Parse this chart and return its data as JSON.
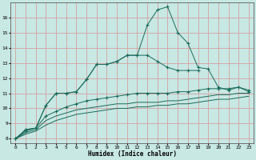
{
  "xlabel": "Humidex (Indice chaleur)",
  "ylabel": "",
  "background_color": "#c8e8e4",
  "grid_color": "#d4a0a0",
  "line_color": "#1a6b5a",
  "xlim": [
    -0.5,
    23.5
  ],
  "ylim": [
    7.7,
    17.0
  ],
  "yticks": [
    8,
    9,
    10,
    11,
    12,
    13,
    14,
    15,
    16
  ],
  "xticks": [
    0,
    1,
    2,
    3,
    4,
    5,
    6,
    7,
    8,
    9,
    10,
    11,
    12,
    13,
    14,
    15,
    16,
    17,
    18,
    19,
    20,
    21,
    22,
    23
  ],
  "series": [
    {
      "x": [
        0,
        1,
        2,
        3,
        4,
        5,
        6,
        7,
        8,
        9,
        10,
        11,
        12,
        13,
        14,
        15,
        16,
        17,
        18,
        19,
        20,
        21,
        22,
        23
      ],
      "y": [
        8.0,
        8.6,
        8.7,
        10.2,
        11.0,
        11.0,
        11.1,
        11.9,
        12.9,
        12.9,
        13.1,
        13.5,
        13.5,
        15.5,
        16.5,
        16.7,
        15.0,
        14.3,
        12.7,
        12.6,
        11.4,
        11.2,
        11.4,
        11.1
      ],
      "marker": "+"
    },
    {
      "x": [
        0,
        1,
        2,
        3,
        4,
        5,
        6,
        7,
        8,
        9,
        10,
        11,
        12,
        13,
        14,
        15,
        16,
        17,
        18
      ],
      "y": [
        8.0,
        8.6,
        8.7,
        10.2,
        11.0,
        11.0,
        11.1,
        11.9,
        12.9,
        12.9,
        13.1,
        13.5,
        13.5,
        13.5,
        13.1,
        12.7,
        12.5,
        12.5,
        12.5
      ],
      "marker": "+"
    },
    {
      "x": [
        0,
        1,
        2,
        3,
        4,
        5,
        6,
        7,
        8,
        9,
        10,
        11,
        12,
        13,
        14,
        15,
        16,
        17,
        18,
        19,
        20,
        21,
        22,
        23
      ],
      "y": [
        8.0,
        8.5,
        8.7,
        9.5,
        9.8,
        10.1,
        10.3,
        10.5,
        10.6,
        10.7,
        10.8,
        10.9,
        11.0,
        11.0,
        11.0,
        11.0,
        11.1,
        11.1,
        11.2,
        11.3,
        11.3,
        11.3,
        11.4,
        11.2
      ],
      "marker": "+"
    },
    {
      "x": [
        0,
        1,
        2,
        3,
        4,
        5,
        6,
        7,
        8,
        9,
        10,
        11,
        12,
        13,
        14,
        15,
        16,
        17,
        18,
        19,
        20,
        21,
        22,
        23
      ],
      "y": [
        8.0,
        8.4,
        8.6,
        9.2,
        9.5,
        9.7,
        9.9,
        10.0,
        10.1,
        10.2,
        10.3,
        10.3,
        10.4,
        10.4,
        10.4,
        10.5,
        10.5,
        10.6,
        10.7,
        10.8,
        10.9,
        10.9,
        11.0,
        11.0
      ],
      "marker": null
    },
    {
      "x": [
        0,
        1,
        2,
        3,
        4,
        5,
        6,
        7,
        8,
        9,
        10,
        11,
        12,
        13,
        14,
        15,
        16,
        17,
        18,
        19,
        20,
        21,
        22,
        23
      ],
      "y": [
        8.0,
        8.3,
        8.5,
        8.9,
        9.2,
        9.4,
        9.6,
        9.7,
        9.8,
        9.9,
        10.0,
        10.0,
        10.1,
        10.1,
        10.2,
        10.2,
        10.3,
        10.3,
        10.4,
        10.5,
        10.6,
        10.6,
        10.7,
        10.8
      ],
      "marker": null
    }
  ]
}
